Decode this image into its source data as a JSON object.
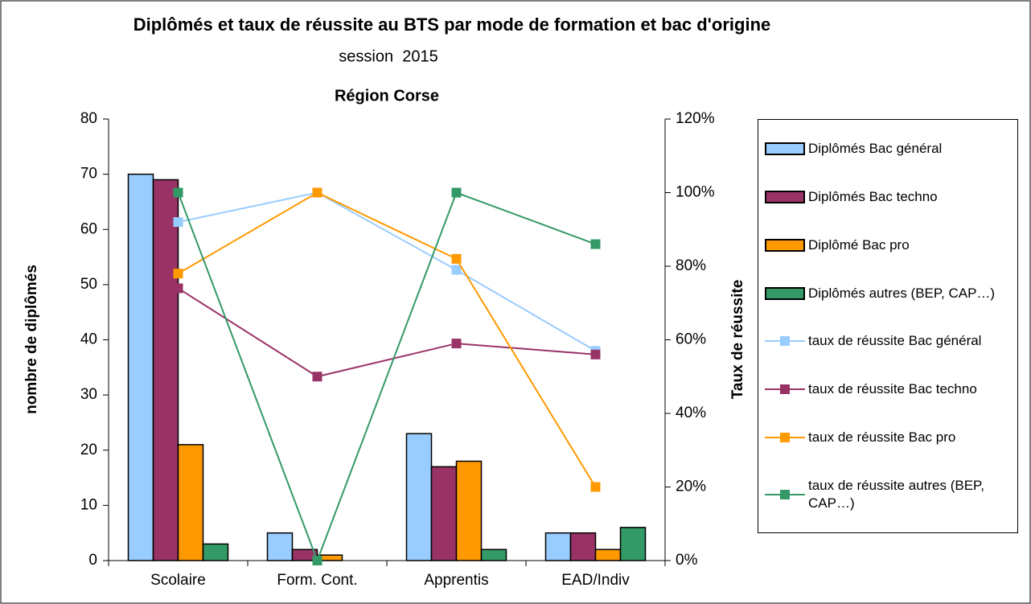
{
  "chart_data": {
    "type": "bar",
    "title": "Diplômés et taux de réussite au BTS  par mode de formation et bac d'origine",
    "subtitle": "session  2015",
    "region": "Région Corse",
    "ylabel": "nombre de diplômés",
    "y2label": "Taux de réussite",
    "categories": [
      "Scolaire",
      "Form. Cont.",
      "Apprentis",
      "EAD/Indiv"
    ],
    "ylim": [
      0,
      80
    ],
    "yticks": [
      0,
      10,
      20,
      30,
      40,
      50,
      60,
      70,
      80
    ],
    "y2lim": [
      0,
      120
    ],
    "y2ticks": [
      {
        "value": 0,
        "label": "0%"
      },
      {
        "value": 20,
        "label": "20%"
      },
      {
        "value": 40,
        "label": "40%"
      },
      {
        "value": 60,
        "label": "60%"
      },
      {
        "value": 80,
        "label": "80%"
      },
      {
        "value": 100,
        "label": "100%"
      },
      {
        "value": 120,
        "label": "120%"
      }
    ],
    "series": [
      {
        "name": "Diplômés Bac général",
        "type": "bar",
        "color": "#99ccff",
        "values": [
          70,
          5,
          23,
          5
        ]
      },
      {
        "name": "Diplômés Bac techno",
        "type": "bar",
        "color": "#993366",
        "values": [
          69,
          2,
          17,
          5
        ]
      },
      {
        "name": "Diplômé Bac pro",
        "type": "bar",
        "color": "#ff9900",
        "values": [
          21,
          1,
          18,
          2
        ]
      },
      {
        "name": "Diplômés autres (BEP, CAP…)",
        "type": "bar",
        "color": "#339966",
        "values": [
          3,
          0,
          2,
          6
        ]
      },
      {
        "name": "taux de réussite Bac général",
        "type": "line",
        "axis": "y2",
        "color": "#99ccff",
        "values": [
          92,
          100,
          79,
          57
        ]
      },
      {
        "name": "taux de réussite Bac techno",
        "type": "line",
        "axis": "y2",
        "color": "#993366",
        "values": [
          74,
          50,
          59,
          56
        ]
      },
      {
        "name": "taux de réussite Bac pro",
        "type": "line",
        "axis": "y2",
        "color": "#ff9900",
        "values": [
          78,
          100,
          82,
          20
        ]
      },
      {
        "name": "taux de réussite autres (BEP, CAP…)",
        "type": "line",
        "axis": "y2",
        "color": "#339966",
        "values": [
          100,
          0,
          100,
          86
        ]
      }
    ]
  }
}
